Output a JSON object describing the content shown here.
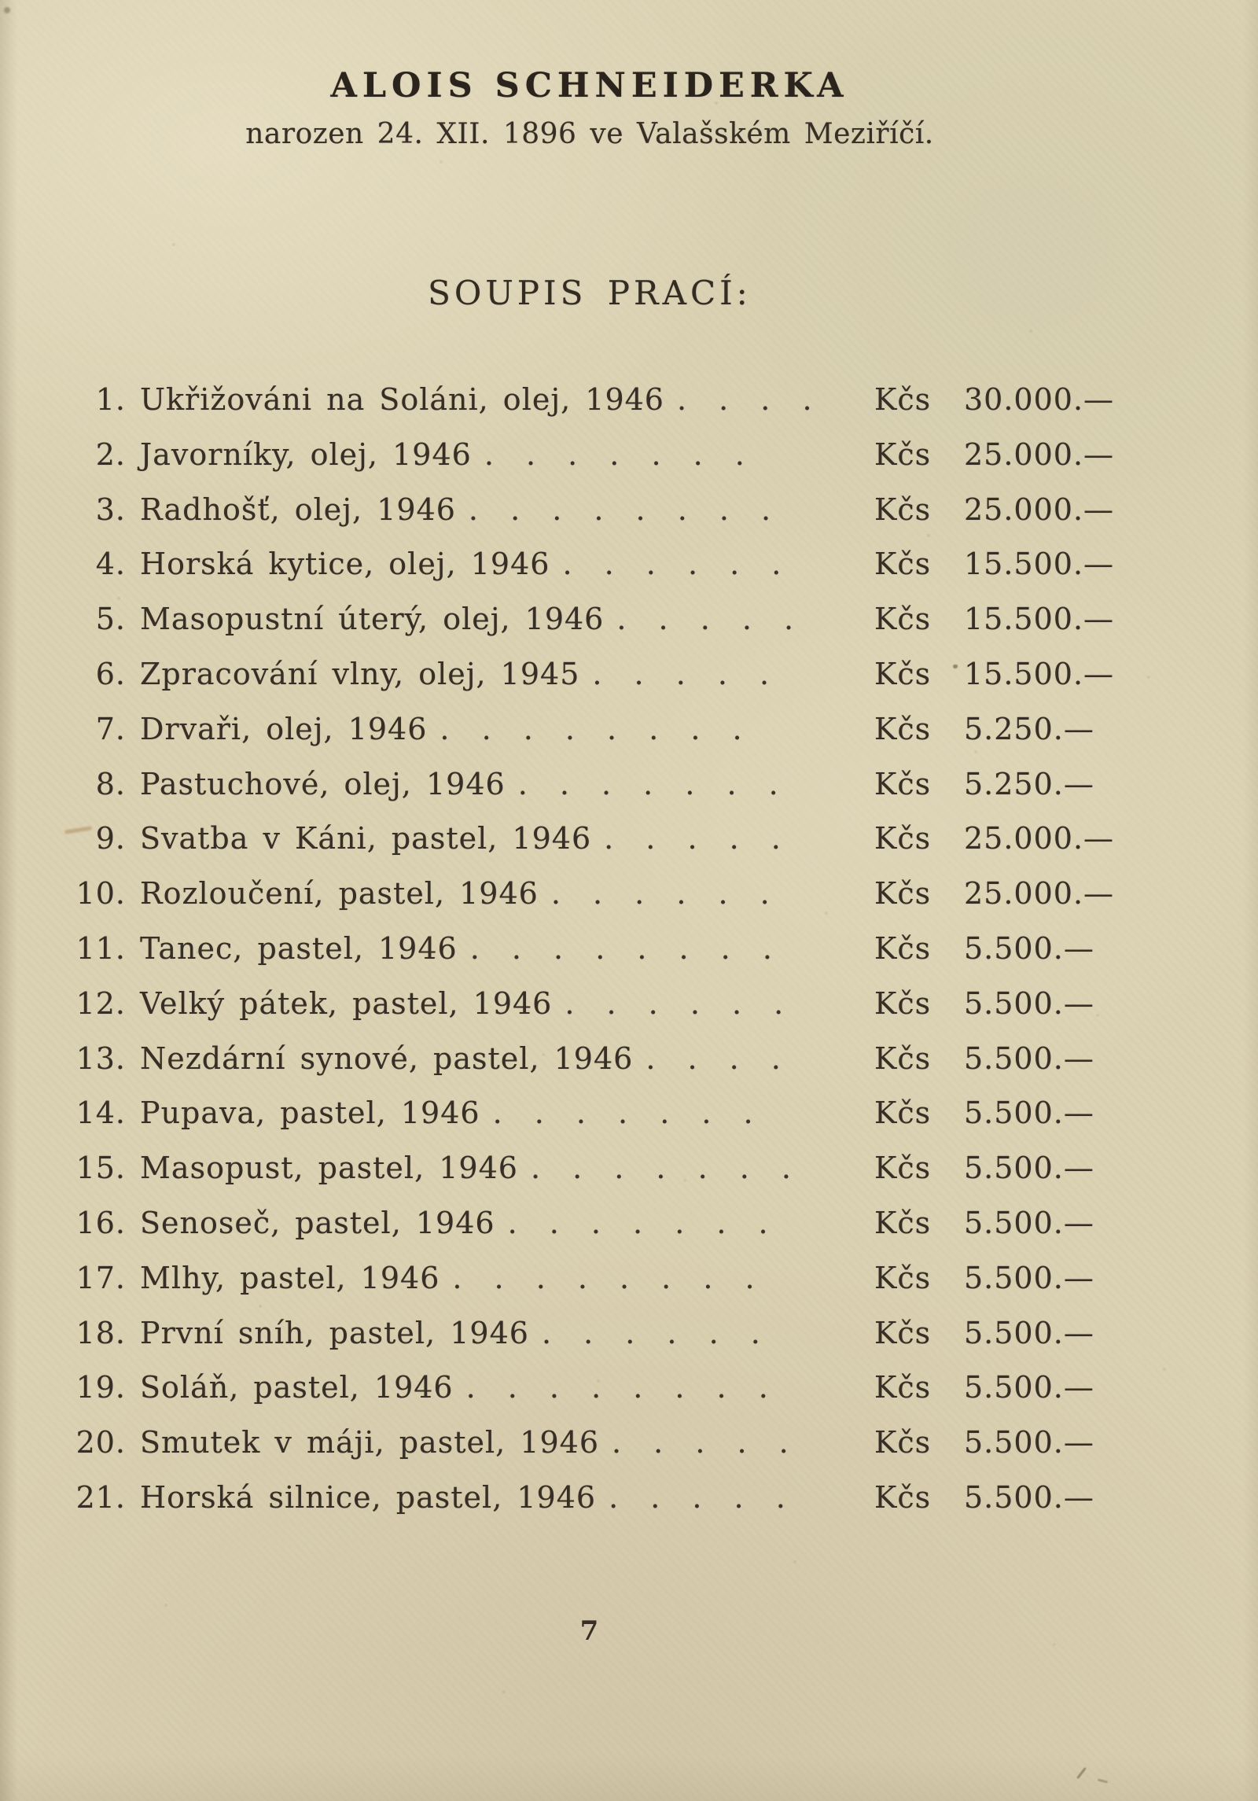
{
  "page": {
    "background": "#dbd1b3",
    "ink": "#372f26"
  },
  "header": {
    "title": "ALOIS SCHNEIDERKA",
    "subtitle": "narozen 24. XII. 1896 ve Valašském Meziříčí."
  },
  "list": {
    "heading": "SOUPIS PRACÍ:",
    "currency": "Kčs",
    "items": [
      {
        "num": "1.",
        "title": "Ukřižováni na Soláni, olej, 1946",
        "dots": ". . . .",
        "price": "30.000.—"
      },
      {
        "num": "2.",
        "title": "Javorníky, olej, 1946",
        "dots": ". . . . . . .",
        "price": "25.000.—"
      },
      {
        "num": "3.",
        "title": "Radhošť, olej, 1946",
        "dots": ". . . . . . . .",
        "price": "25.000.—"
      },
      {
        "num": "4.",
        "title": "Horská kytice, olej, 1946",
        "dots": ". . . . . .",
        "price": "15.500.—"
      },
      {
        "num": "5.",
        "title": "Masopustní úterý, olej, 1946",
        "dots": ". . . . .",
        "price": "15.500.—"
      },
      {
        "num": "6.",
        "title": "Zpracování vlny, olej, 1945",
        "dots": ". . . . .",
        "price": "15.500.—"
      },
      {
        "num": "7.",
        "title": "Drvaři, olej, 1946",
        "dots": ". . . . . . . .",
        "price": "5.250.—"
      },
      {
        "num": "8.",
        "title": "Pastuchové, olej, 1946",
        "dots": ". . . . . . .",
        "price": "5.250.—"
      },
      {
        "num": "9.",
        "title": "Svatba v Káni, pastel, 1946",
        "dots": ". . . . .",
        "price": "25.000.—"
      },
      {
        "num": "10.",
        "title": "Rozloučení, pastel, 1946",
        "dots": ". . . . . .",
        "price": "25.000.—"
      },
      {
        "num": "11.",
        "title": "Tanec, pastel, 1946",
        "dots": ". . . . . . . .",
        "price": "5.500.—"
      },
      {
        "num": "12.",
        "title": "Velký pátek, pastel, 1946",
        "dots": ". . . . . .",
        "price": "5.500.—"
      },
      {
        "num": "13.",
        "title": "Nezdární synové, pastel, 1946",
        "dots": ". . . .",
        "price": "5.500.—"
      },
      {
        "num": "14.",
        "title": "Pupava, pastel, 1946",
        "dots": ". . . . . . .",
        "price": "5.500.—"
      },
      {
        "num": "15.",
        "title": "Masopust, pastel, 1946",
        "dots": ". . . . . . .",
        "price": "5.500.—"
      },
      {
        "num": "16.",
        "title": "Senoseč, pastel, 1946",
        "dots": ". . . . . . .",
        "price": "5.500.—"
      },
      {
        "num": "17.",
        "title": "Mlhy, pastel, 1946",
        "dots": ". . . . . . . .",
        "price": "5.500.—"
      },
      {
        "num": "18.",
        "title": "První sníh, pastel, 1946",
        "dots": ". . . . . .",
        "price": "5.500.—"
      },
      {
        "num": "19.",
        "title": "Soláň, pastel, 1946",
        "dots": ". . . . . . . .",
        "price": "5.500.—"
      },
      {
        "num": "20.",
        "title": "Smutek v máji, pastel, 1946",
        "dots": ". . . . .",
        "price": "5.500.—"
      },
      {
        "num": "21.",
        "title": "Horská silnice, pastel, 1946",
        "dots": ". . . . .",
        "price": "5.500.—"
      }
    ]
  },
  "footer": {
    "page_number": "7"
  }
}
